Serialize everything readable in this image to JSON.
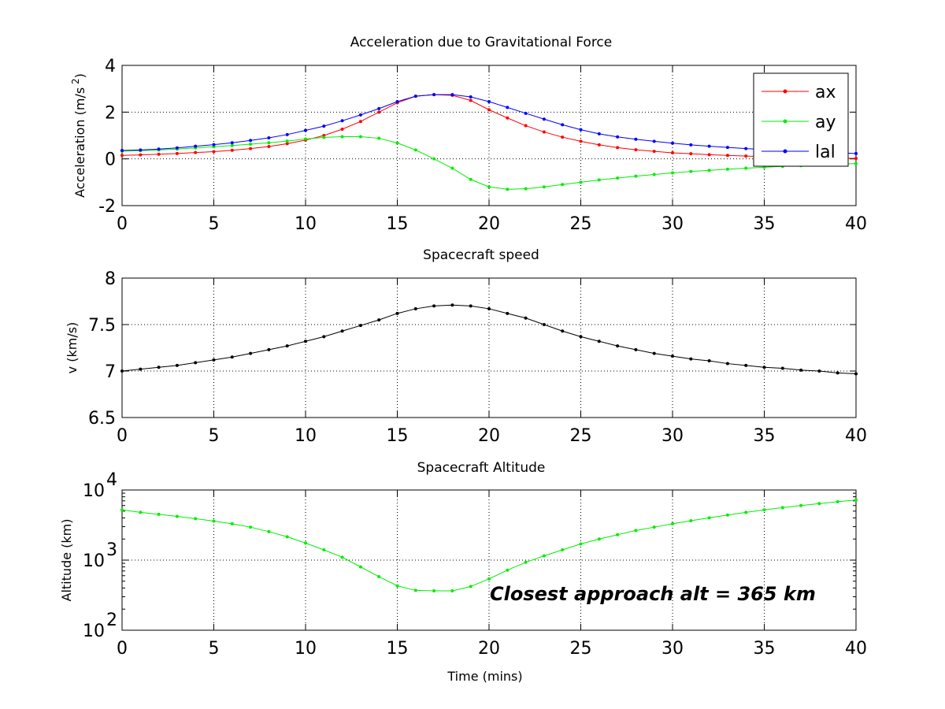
{
  "chart_data": [
    {
      "type": "line",
      "title": "Acceleration due to Gravitational Force",
      "xlabel": "",
      "ylabel": "Acceleration (m/s",
      "ylabel_sup": "2",
      "ylabel_close": ")",
      "xlim": [
        0,
        40
      ],
      "ylim": [
        -2,
        4
      ],
      "xticks": [
        0,
        5,
        10,
        15,
        20,
        25,
        30,
        35,
        40
      ],
      "yticks": [
        -2,
        0,
        2,
        4
      ],
      "grid": true,
      "legend": "top-right",
      "x": [
        0,
        1,
        2,
        3,
        4,
        5,
        6,
        7,
        8,
        9,
        10,
        11,
        12,
        13,
        14,
        15,
        16,
        17,
        18,
        19,
        20,
        21,
        22,
        23,
        24,
        25,
        26,
        27,
        28,
        29,
        30,
        31,
        32,
        33,
        34,
        35,
        36,
        37,
        38,
        39,
        40
      ],
      "series": [
        {
          "name": "ax",
          "color": "#ff0000",
          "values": [
            0.15,
            0.17,
            0.2,
            0.23,
            0.27,
            0.31,
            0.37,
            0.44,
            0.53,
            0.65,
            0.8,
            1.0,
            1.27,
            1.6,
            2.0,
            2.4,
            2.68,
            2.75,
            2.72,
            2.5,
            2.1,
            1.75,
            1.42,
            1.15,
            0.93,
            0.75,
            0.6,
            0.48,
            0.39,
            0.32,
            0.26,
            0.22,
            0.18,
            0.15,
            0.12,
            0.1,
            0.08,
            0.06,
            0.05,
            0.03,
            0.02
          ]
        },
        {
          "name": "ay",
          "color": "#00ee00",
          "values": [
            0.33,
            0.35,
            0.38,
            0.42,
            0.47,
            0.52,
            0.57,
            0.63,
            0.69,
            0.76,
            0.85,
            0.92,
            0.95,
            0.95,
            0.88,
            0.68,
            0.38,
            0.0,
            -0.4,
            -0.88,
            -1.2,
            -1.3,
            -1.28,
            -1.2,
            -1.1,
            -1.0,
            -0.9,
            -0.82,
            -0.74,
            -0.67,
            -0.6,
            -0.54,
            -0.49,
            -0.44,
            -0.4,
            -0.36,
            -0.32,
            -0.29,
            -0.26,
            -0.23,
            -0.2
          ]
        },
        {
          "name": "lal",
          "color": "#0000ff",
          "values": [
            0.36,
            0.38,
            0.42,
            0.47,
            0.54,
            0.61,
            0.69,
            0.79,
            0.9,
            1.04,
            1.22,
            1.4,
            1.63,
            1.88,
            2.15,
            2.45,
            2.68,
            2.75,
            2.75,
            2.65,
            2.45,
            2.2,
            1.95,
            1.7,
            1.46,
            1.25,
            1.07,
            0.94,
            0.84,
            0.75,
            0.67,
            0.6,
            0.54,
            0.49,
            0.44,
            0.4,
            0.36,
            0.32,
            0.29,
            0.26,
            0.23
          ]
        }
      ]
    },
    {
      "type": "line",
      "title": "Spacecraft speed",
      "xlabel": "",
      "ylabel": "v (km/s)",
      "xlim": [
        0,
        40
      ],
      "ylim": [
        6.5,
        8
      ],
      "xticks": [
        0,
        5,
        10,
        15,
        20,
        25,
        30,
        35,
        40
      ],
      "yticks": [
        6.5,
        7,
        7.5,
        8
      ],
      "grid": true,
      "x": [
        0,
        1,
        2,
        3,
        4,
        5,
        6,
        7,
        8,
        9,
        10,
        11,
        12,
        13,
        14,
        15,
        16,
        17,
        18,
        19,
        20,
        21,
        22,
        23,
        24,
        25,
        26,
        27,
        28,
        29,
        30,
        31,
        32,
        33,
        34,
        35,
        36,
        37,
        38,
        39,
        40
      ],
      "series": [
        {
          "color": "#000000",
          "values": [
            7.0,
            7.02,
            7.04,
            7.06,
            7.09,
            7.12,
            7.15,
            7.19,
            7.23,
            7.27,
            7.32,
            7.37,
            7.43,
            7.49,
            7.55,
            7.62,
            7.67,
            7.7,
            7.71,
            7.7,
            7.67,
            7.62,
            7.57,
            7.5,
            7.43,
            7.37,
            7.32,
            7.27,
            7.23,
            7.19,
            7.16,
            7.13,
            7.11,
            7.08,
            7.06,
            7.04,
            7.03,
            7.01,
            7.0,
            6.98,
            6.97
          ]
        }
      ]
    },
    {
      "type": "line",
      "title": "Spacecraft Altitude",
      "xlabel": "Time (mins)",
      "ylabel": "Altitude (km)",
      "xlim": [
        0,
        40
      ],
      "ylim": [
        100,
        10000
      ],
      "yscale": "log",
      "xticks": [
        0,
        5,
        10,
        15,
        20,
        25,
        30,
        35,
        40
      ],
      "yticks": [
        100,
        1000,
        10000
      ],
      "ytick_labels": [
        {
          "base": "10",
          "exp": "2"
        },
        {
          "base": "10",
          "exp": "3"
        },
        {
          "base": "10",
          "exp": "4"
        }
      ],
      "grid": true,
      "annotation": "Closest approach alt =   365 km",
      "x": [
        0,
        1,
        2,
        3,
        4,
        5,
        6,
        7,
        8,
        9,
        10,
        11,
        12,
        13,
        14,
        15,
        16,
        17,
        18,
        19,
        20,
        21,
        22,
        23,
        24,
        25,
        26,
        27,
        28,
        29,
        30,
        31,
        32,
        33,
        34,
        35,
        36,
        37,
        38,
        39,
        40
      ],
      "series": [
        {
          "color": "#00ee00",
          "values": [
            5200,
            4800,
            4500,
            4200,
            3900,
            3600,
            3300,
            2950,
            2550,
            2150,
            1750,
            1400,
            1100,
            800,
            580,
            430,
            370,
            365,
            365,
            420,
            540,
            720,
            930,
            1150,
            1400,
            1700,
            2000,
            2300,
            2650,
            2950,
            3300,
            3650,
            4000,
            4400,
            4800,
            5200,
            5600,
            6000,
            6400,
            6800,
            7200
          ]
        }
      ]
    }
  ]
}
